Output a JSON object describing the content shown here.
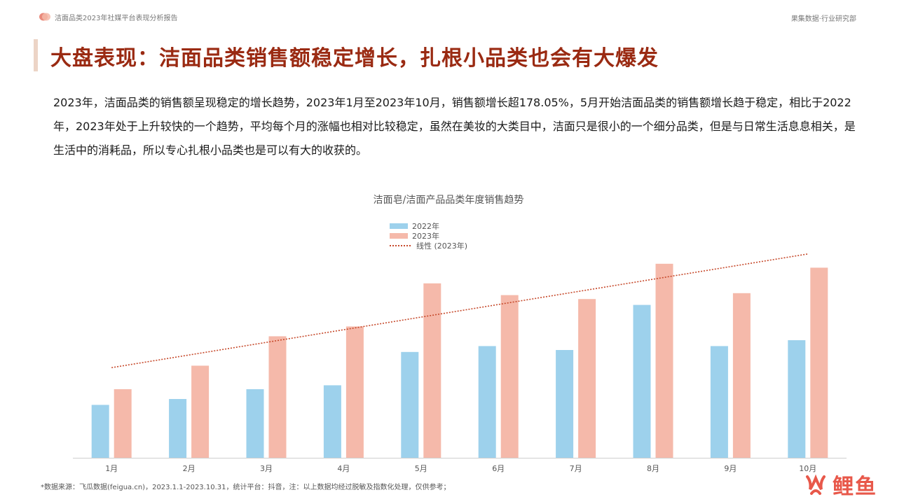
{
  "header": {
    "report_title": "洁面品类2023年社媒平台表现分析报告",
    "brand": "果集数据·行业研究部"
  },
  "page": {
    "title": "大盘表现：洁面品类销售额稳定增长，扎根小品类也会有大爆发",
    "description": "2023年，洁面品类的销售额呈现稳定的增长趋势，2023年1月至2023年10月，销售额增长超178.05%，5月开始洁面品类的销售额增长趋于稳定，相比于2022年，2023年处于上升较快的一个趋势，平均每个月的涨幅也相对比较稳定，虽然在美妆的大类目中，洁面只是很小的一个细分品类，但是与日常生活息息相关，是生活中的消耗品，所以专心扎根小品类也是可以有大的收获的。"
  },
  "chart_data": {
    "type": "bar",
    "title": "洁面皂/洁面产品品类年度销售趋势",
    "categories": [
      "1月",
      "2月",
      "3月",
      "4月",
      "5月",
      "6月",
      "7月",
      "8月",
      "9月",
      "10月"
    ],
    "series": [
      {
        "name": "2022年",
        "color": "#9dd1ec",
        "values": [
          27,
          30,
          35,
          37,
          54,
          57,
          55,
          78,
          57,
          60
        ]
      },
      {
        "name": "2023年",
        "color": "#f5b9aa",
        "values": [
          35,
          47,
          62,
          67,
          89,
          83,
          81,
          99,
          84,
          97
        ]
      }
    ],
    "trendline": {
      "name": "线性 (2023年)",
      "color": "#c6492b",
      "start": 46,
      "end": 104
    },
    "ylim": [
      0,
      110
    ],
    "grid": false,
    "legend_position": "top-center"
  },
  "footer": {
    "source": "*数据来源：飞瓜数据(feigua.cn)，2023.1.1-2023.10.31，统计平台：抖音，注：以上数据均经过脱敏及指数化处理，仅供参考；"
  },
  "watermark": {
    "text": "鲤鱼",
    "icon": "fire-icon"
  }
}
